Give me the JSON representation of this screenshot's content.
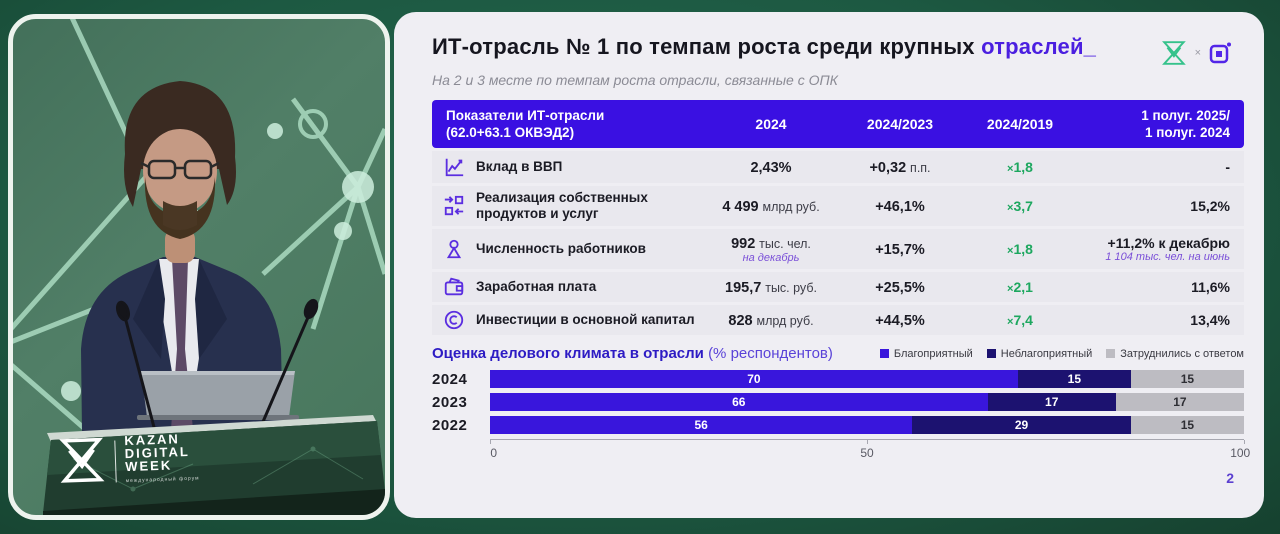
{
  "video_panel": {
    "podium_title_line1": "KAZAN",
    "podium_title_line2": "DIGITAL",
    "podium_title_line3": "WEEK",
    "podium_tagline": "международный форум"
  },
  "slide": {
    "page_number": "2",
    "title_main": "ИТ-отрасль № 1 по темпам роста среди крупных ",
    "title_accent": "отраслей_",
    "subtitle": "На 2 и 3 месте по темпам роста отрасли, связанные с ОПК",
    "logo_separator": "×",
    "colors": {
      "header_blue": "#3a10e2",
      "accent_purple": "#4b1fe0",
      "growth_green": "#1da75f",
      "series_favorable": "#3916dc",
      "series_unfavorable": "#1c1270",
      "series_undecided": "#bdbcc2"
    },
    "table": {
      "header": {
        "col1_line1": "Показатели ИТ-отрасли",
        "col1_line2": "(62.0+63.1 ОКВЭД2)",
        "col2": "2024",
        "col3": "2024/2023",
        "col4": "2024/2019",
        "col5_line1": "1 полуг. 2025/",
        "col5_line2": "1 полуг. 2024"
      },
      "rows": [
        {
          "icon": "chart-line-icon",
          "label": "Вклад в ВВП",
          "value": "2,43%",
          "value_unit": "",
          "value_note": "",
          "growth": "+0,32",
          "growth_unit": "п.п.",
          "mult_sign": "×",
          "mult": "1,8",
          "half": "-",
          "half_note": ""
        },
        {
          "icon": "exchange-icon",
          "label": "Реализация собственных продуктов и услуг",
          "value": "4 499",
          "value_unit": "млрд руб.",
          "value_note": "",
          "growth": "+46,1%",
          "growth_unit": "",
          "mult_sign": "×",
          "mult": "3,7",
          "half": "15,2%",
          "half_note": ""
        },
        {
          "icon": "person-icon",
          "label": "Численность работников",
          "value": "992",
          "value_unit": "тыс. чел.",
          "value_note": "на декабрь",
          "growth": "+15,7%",
          "growth_unit": "",
          "mult_sign": "×",
          "mult": "1,8",
          "half": "+11,2% к декабрю",
          "half_note": "1 104 тыс. чел. на июнь"
        },
        {
          "icon": "wallet-icon",
          "label": "Заработная плата",
          "value": "195,7",
          "value_unit": "тыс. руб.",
          "value_note": "",
          "growth": "+25,5%",
          "growth_unit": "",
          "mult_sign": "×",
          "mult": "2,1",
          "half": "11,6%",
          "half_note": ""
        },
        {
          "icon": "coin-icon",
          "label": "Инвестиции в основной капитал",
          "value": "828",
          "value_unit": "млрд руб.",
          "value_note": "",
          "growth": "+44,5%",
          "growth_unit": "",
          "mult_sign": "×",
          "mult": "7,4",
          "half": "13,4%",
          "half_note": ""
        }
      ]
    },
    "chart_heading": {
      "title": "Оценка делового климата в отрасли",
      "suffix": "(% респондентов)"
    }
  },
  "chart_data": {
    "type": "bar",
    "orientation": "horizontal",
    "stacked": true,
    "title": "Оценка делового климата в отрасли (% респондентов)",
    "categories": [
      "2024",
      "2023",
      "2022"
    ],
    "series": [
      {
        "name": "Благоприятный",
        "color": "#3916dc",
        "values": [
          70,
          66,
          56
        ]
      },
      {
        "name": "Неблагоприятный",
        "color": "#1c1270",
        "values": [
          15,
          17,
          29
        ]
      },
      {
        "name": "Затруднились с ответом",
        "color": "#bdbcc2",
        "values": [
          15,
          17,
          15
        ]
      }
    ],
    "xlim": [
      0,
      100
    ],
    "x_ticks": [
      "0",
      "50",
      "100"
    ],
    "legend_position": "top-right",
    "grid": false
  }
}
